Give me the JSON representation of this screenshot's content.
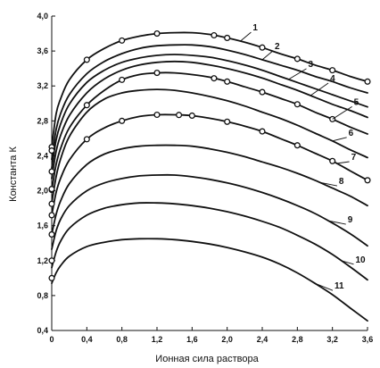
{
  "chart_data": {
    "type": "line",
    "title": "",
    "xlabel": "Ионная сила раствора",
    "ylabel": "Константа К",
    "xlim": [
      0,
      3.6
    ],
    "ylim": [
      0.4,
      4.0
    ],
    "xticks": [
      0,
      0.4,
      0.8,
      1.2,
      1.6,
      2.0,
      2.4,
      2.8,
      3.2,
      3.6
    ],
    "xtick_labels": [
      "0",
      "0,4",
      "0,8",
      "1,2",
      "1,6",
      "2,0",
      "2,4",
      "2,8",
      "3,2",
      "3,6"
    ],
    "yticks": [
      0.4,
      0.8,
      1.2,
      1.6,
      2.0,
      2.4,
      2.8,
      3.2,
      3.6,
      4.0
    ],
    "ytick_labels": [
      "0,4",
      "0,8",
      "1,2",
      "1,6",
      "2,0",
      "2,4",
      "2,8",
      "3,2",
      "3,6",
      "4,0"
    ],
    "grid": false,
    "legend": "none",
    "x": [
      0,
      0.05,
      0.1,
      0.2,
      0.4,
      0.6,
      0.8,
      1.0,
      1.2,
      1.4,
      1.6,
      1.8,
      2.0,
      2.2,
      2.4,
      2.6,
      2.8,
      3.0,
      3.2,
      3.4,
      3.6
    ],
    "series": [
      {
        "name": "1",
        "values": [
          2.5,
          2.88,
          3.05,
          3.27,
          3.5,
          3.63,
          3.72,
          3.77,
          3.8,
          3.81,
          3.81,
          3.79,
          3.75,
          3.7,
          3.64,
          3.57,
          3.51,
          3.44,
          3.38,
          3.31,
          3.25
        ],
        "markers": true,
        "marker_x": [
          0,
          0.4,
          0.8,
          1.2,
          1.85,
          2.0,
          2.4,
          2.8,
          3.2,
          3.6
        ]
      },
      {
        "name": "2",
        "values": [
          2.36,
          2.7,
          2.88,
          3.1,
          3.34,
          3.48,
          3.57,
          3.63,
          3.66,
          3.67,
          3.67,
          3.65,
          3.61,
          3.56,
          3.5,
          3.44,
          3.38,
          3.31,
          3.25,
          3.18,
          3.12
        ],
        "markers": false
      },
      {
        "name": "3",
        "values": [
          2.26,
          2.58,
          2.76,
          2.99,
          3.24,
          3.38,
          3.47,
          3.52,
          3.55,
          3.56,
          3.55,
          3.53,
          3.49,
          3.44,
          3.38,
          3.31,
          3.24,
          3.17,
          3.1,
          3.03,
          2.96
        ],
        "markers": false
      },
      {
        "name": "4",
        "values": [
          2.14,
          2.45,
          2.63,
          2.86,
          3.12,
          3.28,
          3.38,
          3.44,
          3.47,
          3.48,
          3.47,
          3.44,
          3.4,
          3.35,
          3.29,
          3.22,
          3.15,
          3.07,
          2.99,
          2.92,
          2.84
        ],
        "markers": false
      },
      {
        "name": "5",
        "values": [
          2.01,
          2.3,
          2.48,
          2.72,
          2.98,
          3.15,
          3.27,
          3.33,
          3.35,
          3.35,
          3.33,
          3.3,
          3.25,
          3.19,
          3.13,
          3.06,
          2.99,
          2.9,
          2.82,
          2.73,
          2.65
        ],
        "markers": true,
        "marker_x": [
          0,
          0.4,
          0.8,
          1.2,
          1.85,
          2.0,
          2.4,
          2.8,
          3.2
        ]
      },
      {
        "name": "6",
        "values": [
          1.86,
          2.16,
          2.36,
          2.62,
          2.9,
          3.05,
          3.12,
          3.15,
          3.16,
          3.15,
          3.12,
          3.08,
          3.03,
          2.97,
          2.9,
          2.83,
          2.75,
          2.66,
          2.57,
          2.47,
          2.38
        ],
        "markers": false
      },
      {
        "name": "7",
        "values": [
          1.72,
          1.98,
          2.14,
          2.35,
          2.59,
          2.72,
          2.8,
          2.85,
          2.87,
          2.87,
          2.86,
          2.83,
          2.79,
          2.74,
          2.68,
          2.6,
          2.52,
          2.43,
          2.34,
          2.23,
          2.12
        ],
        "markers": true,
        "marker_x": [
          0,
          0.4,
          0.8,
          1.2,
          1.45,
          1.6,
          2.0,
          2.4,
          2.8,
          3.2,
          3.6
        ]
      },
      {
        "name": "8",
        "values": [
          1.5,
          1.73,
          1.88,
          2.08,
          2.3,
          2.42,
          2.48,
          2.51,
          2.52,
          2.52,
          2.51,
          2.48,
          2.44,
          2.39,
          2.33,
          2.27,
          2.2,
          2.12,
          2.03,
          1.94,
          1.83
        ],
        "markers": false
      },
      {
        "name": "9",
        "values": [
          1.33,
          1.54,
          1.67,
          1.83,
          2.0,
          2.09,
          2.14,
          2.17,
          2.18,
          2.18,
          2.16,
          2.13,
          2.09,
          2.04,
          1.98,
          1.91,
          1.83,
          1.74,
          1.63,
          1.51,
          1.37
        ],
        "markers": false
      },
      {
        "name": "10",
        "values": [
          1.12,
          1.3,
          1.42,
          1.57,
          1.72,
          1.8,
          1.84,
          1.86,
          1.86,
          1.85,
          1.83,
          1.8,
          1.76,
          1.71,
          1.65,
          1.58,
          1.49,
          1.39,
          1.27,
          1.13,
          0.98
        ],
        "markers": false
      },
      {
        "name": "11",
        "values": [
          0.94,
          1.06,
          1.14,
          1.25,
          1.36,
          1.41,
          1.44,
          1.45,
          1.45,
          1.44,
          1.42,
          1.39,
          1.35,
          1.3,
          1.24,
          1.16,
          1.06,
          0.94,
          0.81,
          0.66,
          0.51
        ],
        "markers": false
      }
    ],
    "left_markers_y": [
      1.0,
      1.2,
      1.5,
      1.85,
      2.02,
      2.22,
      2.46
    ]
  }
}
